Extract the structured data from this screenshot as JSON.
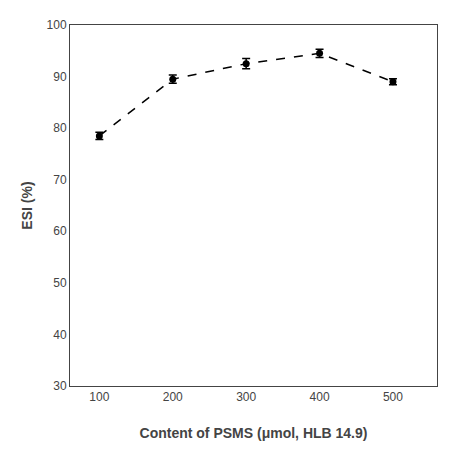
{
  "chart_data": {
    "type": "line",
    "x": [
      100,
      200,
      300,
      400,
      500
    ],
    "values": [
      78.5,
      89.5,
      92.5,
      94.5,
      89.0
    ],
    "yerr": [
      0.7,
      0.8,
      1.0,
      0.8,
      0.6
    ],
    "color": "black",
    "marker": "circle",
    "line_style": "dash",
    "xlabel": "Content of PSMS (μmol, HLB 14.9)",
    "ylabel": "ESI (%)",
    "xlim": [
      60,
      560
    ],
    "ylim": [
      30,
      100
    ],
    "xticks": [
      100,
      200,
      300,
      400,
      500
    ],
    "yticks": [
      30,
      40,
      50,
      60,
      70,
      80,
      90,
      100
    ],
    "grid": false
  }
}
